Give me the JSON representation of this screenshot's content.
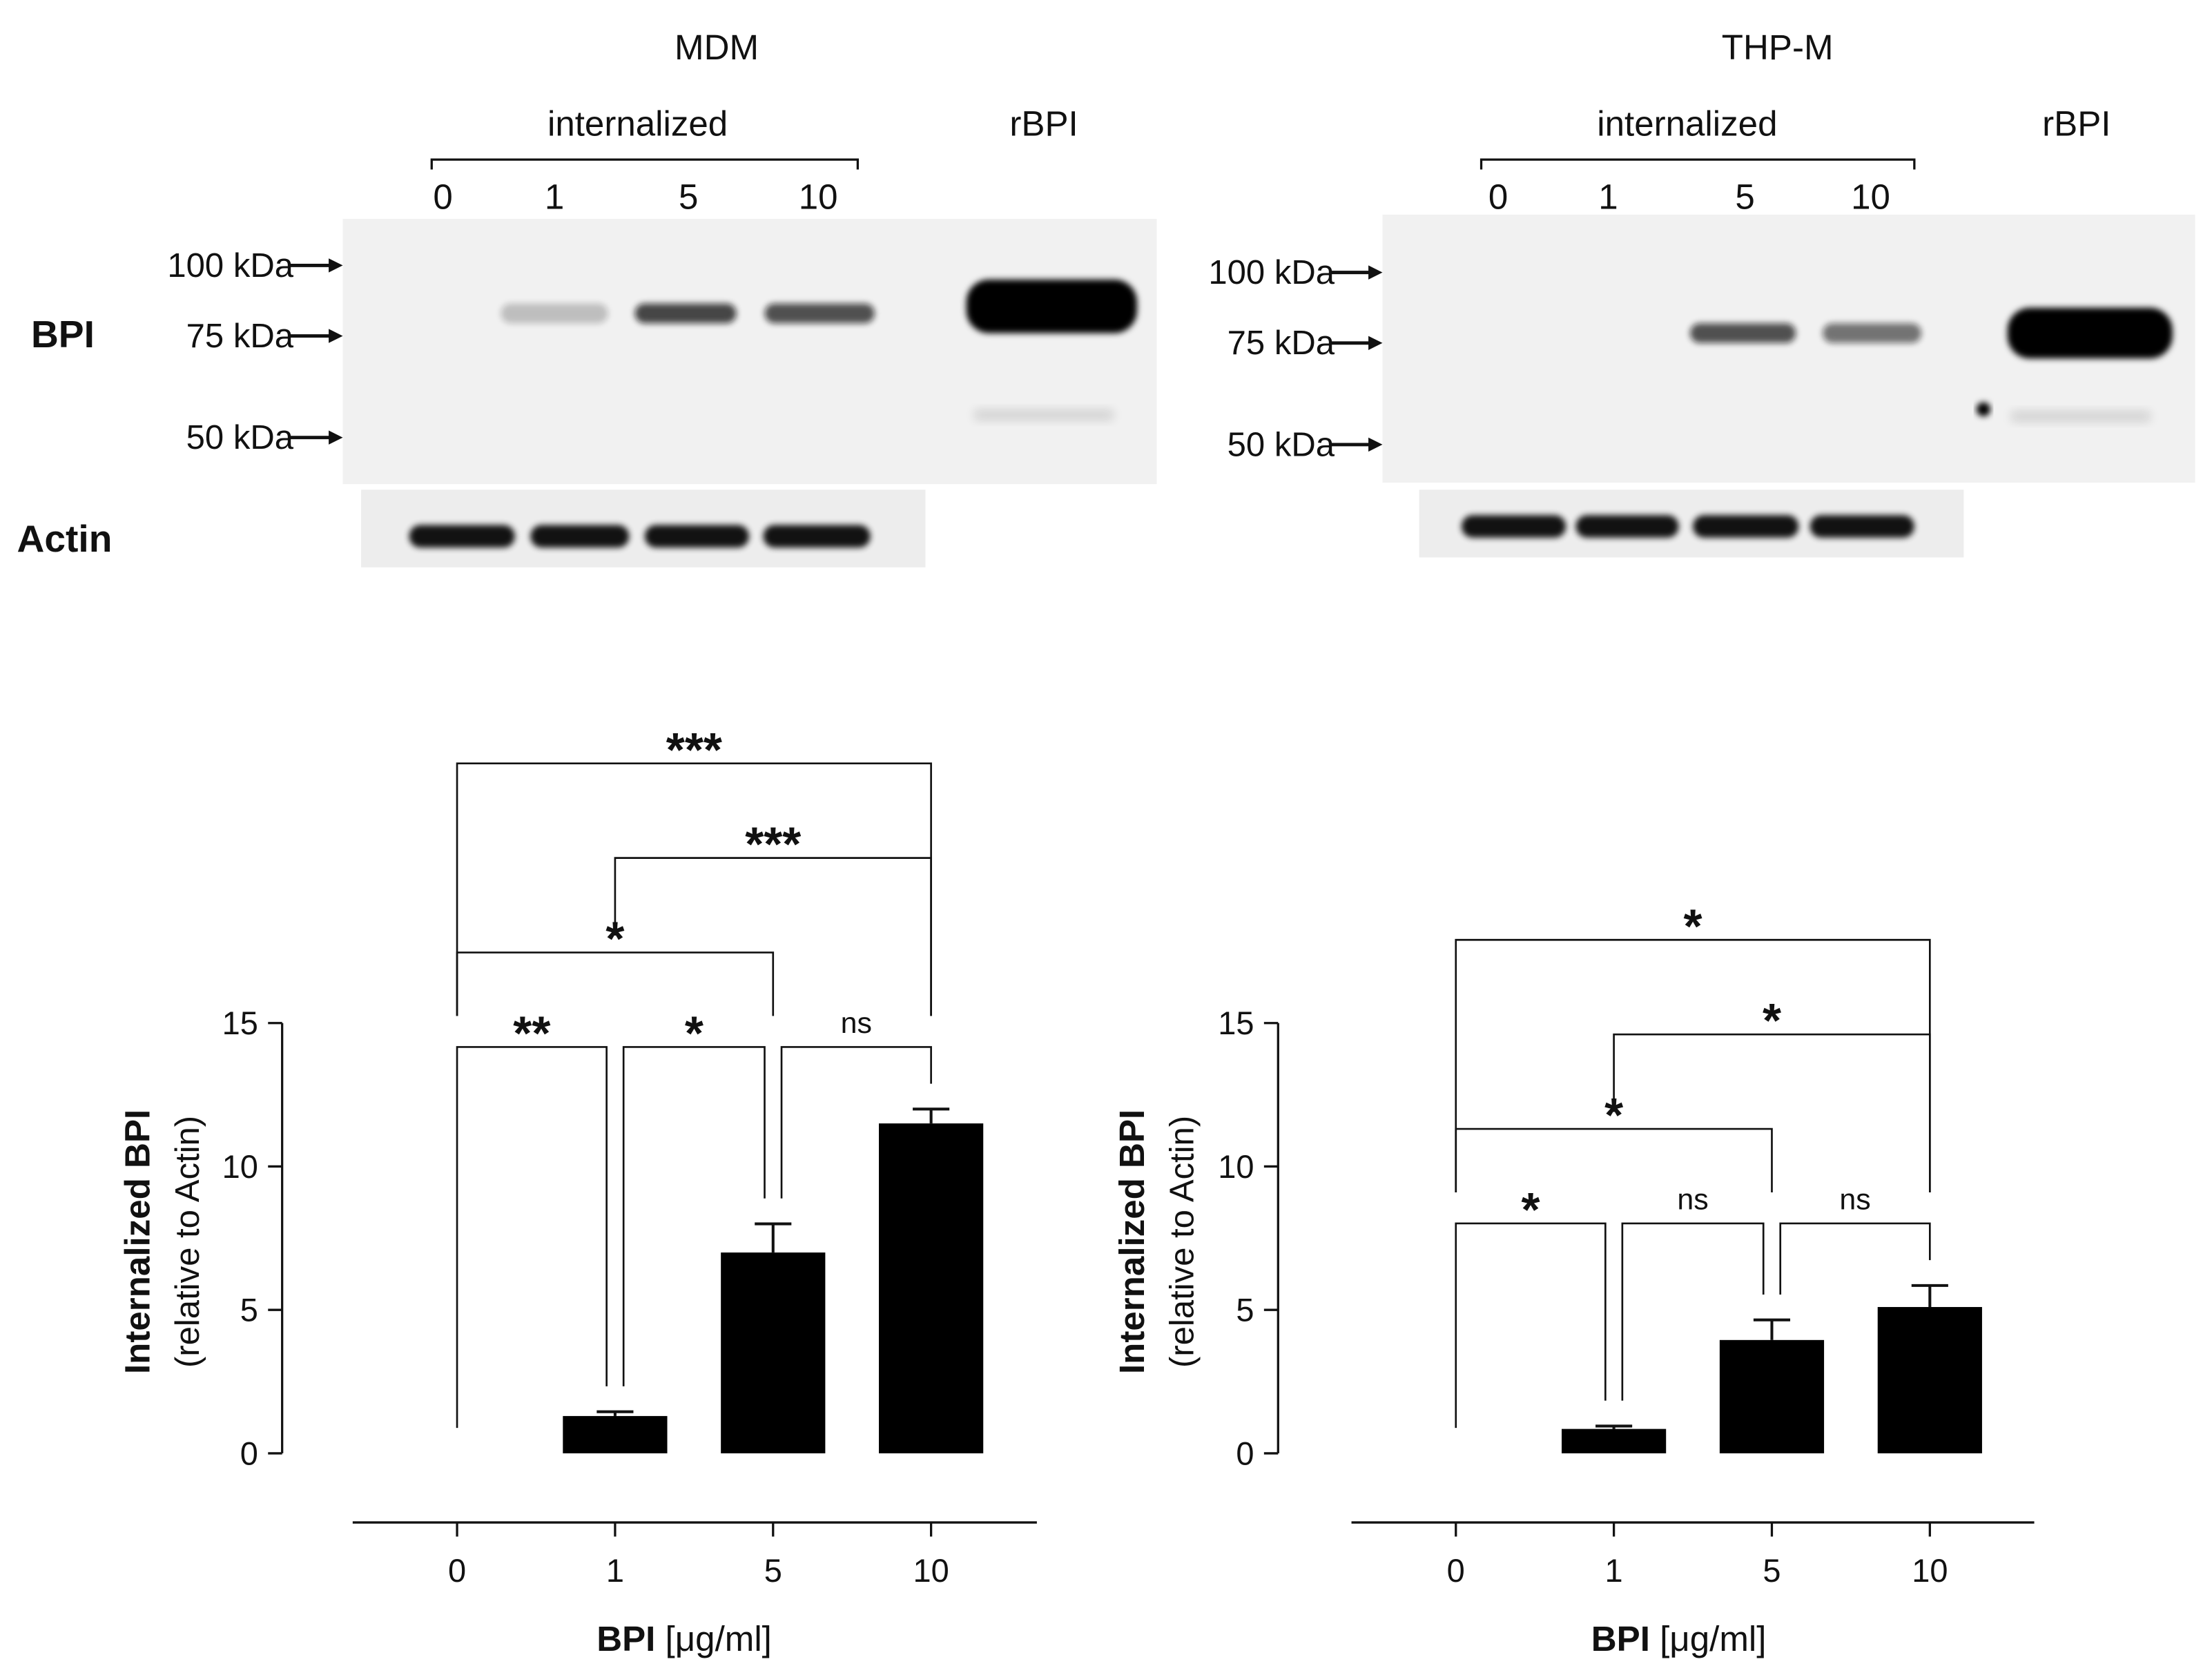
{
  "blots": [
    {
      "title": "MDM",
      "group_label": "internalized",
      "lanes": [
        "0",
        "1",
        "5",
        "10"
      ],
      "reference_lane": "rBPI",
      "markers": [
        "100 kDa",
        "75 kDa",
        "50 kDa"
      ]
    },
    {
      "title": "THP-M",
      "group_label": "internalized",
      "lanes": [
        "0",
        "1",
        "5",
        "10"
      ],
      "reference_lane": "rBPI",
      "markers": [
        "100 kDa",
        "75 kDa",
        "50 kDa"
      ]
    }
  ],
  "row_labels": [
    "BPI",
    "Actin"
  ],
  "chart_data": [
    {
      "type": "bar",
      "categories": [
        "0",
        "1",
        "5",
        "10"
      ],
      "values": [
        0,
        1.3,
        7.0,
        11.5
      ],
      "errors": [
        null,
        0.15,
        1.0,
        0.5
      ],
      "color": "#000000",
      "ylim": [
        0,
        15
      ],
      "yticks": [
        0,
        5,
        10,
        15
      ],
      "y_label": "Internalized BPI",
      "y_label_sub": "(relative to Actin)",
      "x_label": "BPI",
      "x_label_unit": "[μg/ml]",
      "comparisons": [
        {
          "between": [
            0,
            1
          ],
          "label": "**"
        },
        {
          "between": [
            1,
            2
          ],
          "label": "*"
        },
        {
          "between": [
            2,
            3
          ],
          "label": "ns"
        },
        {
          "between": [
            0,
            2
          ],
          "label": "*"
        },
        {
          "between": [
            1,
            3
          ],
          "label": "***"
        },
        {
          "between": [
            0,
            3
          ],
          "label": "***"
        }
      ]
    },
    {
      "type": "bar",
      "categories": [
        "0",
        "1",
        "5",
        "10"
      ],
      "values": [
        0,
        0.85,
        3.95,
        5.1
      ],
      "errors": [
        null,
        0.1,
        0.7,
        0.75
      ],
      "color": "#000000",
      "ylim": [
        0,
        15
      ],
      "yticks": [
        0,
        5,
        10,
        15
      ],
      "y_label": "Internalized BPI",
      "y_label_sub": "(relative to Actin)",
      "x_label": "BPI",
      "x_label_unit": "[μg/ml]",
      "comparisons": [
        {
          "between": [
            0,
            1
          ],
          "label": "*"
        },
        {
          "between": [
            1,
            2
          ],
          "label": "ns"
        },
        {
          "between": [
            2,
            3
          ],
          "label": "ns"
        },
        {
          "between": [
            0,
            2
          ],
          "label": "*"
        },
        {
          "between": [
            1,
            3
          ],
          "label": "*"
        },
        {
          "between": [
            0,
            3
          ],
          "label": "*"
        }
      ]
    }
  ]
}
